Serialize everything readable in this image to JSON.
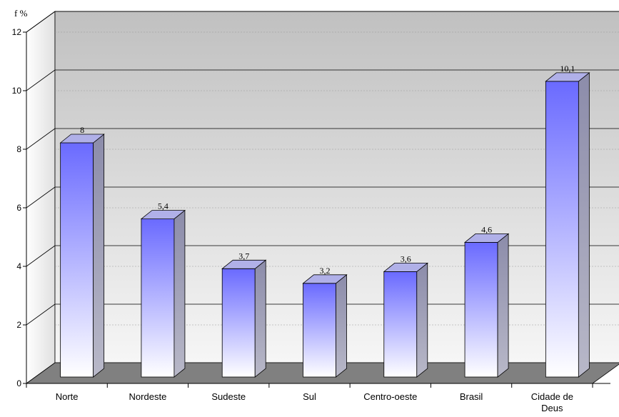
{
  "chart_data": {
    "type": "bar",
    "title": "",
    "xlabel": "",
    "ylabel": "f %",
    "categories": [
      "Norte",
      "Nordeste",
      "Sudeste",
      "Sul",
      "Centro-oeste",
      "Brasil",
      "Cidade de Deus"
    ],
    "values": [
      8,
      5.4,
      3.7,
      3.2,
      3.6,
      4.6,
      10.1
    ],
    "value_labels": [
      "8",
      "5,4",
      "3,7",
      "3,2",
      "3,6",
      "4,6",
      "10,1"
    ],
    "yticks": [
      0,
      2,
      4,
      6,
      8,
      10,
      12
    ],
    "ylim": [
      0,
      12
    ],
    "grid": true,
    "style": "3d-column",
    "colors": {
      "bar_top": "#6666ff",
      "bar_bottom": "#ffffff",
      "bar_side": "#9a9ab8",
      "floor": "#808080",
      "wall": "#d4d4d4"
    }
  }
}
